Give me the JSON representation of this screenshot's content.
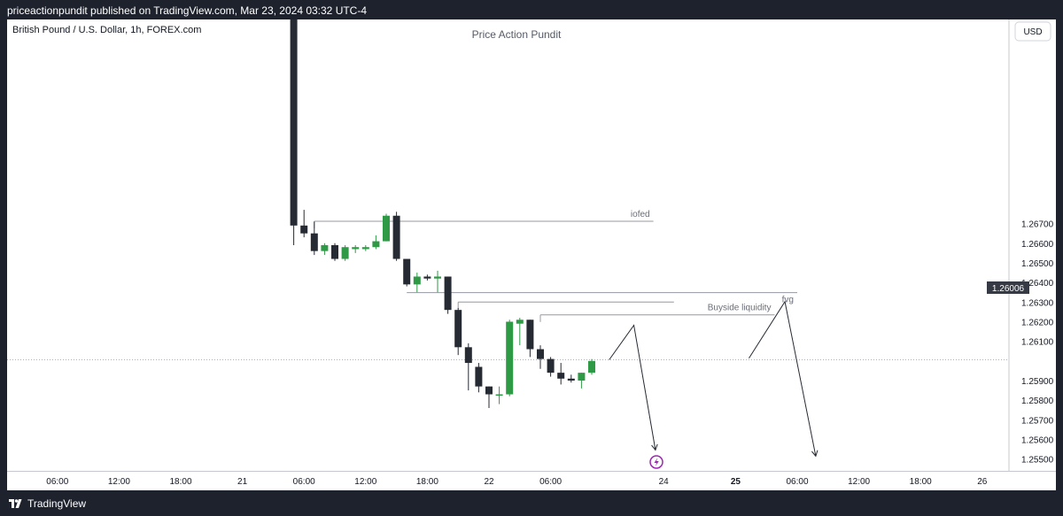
{
  "header": {
    "publish_line": "priceactionpundit published on TradingView.com, Mar 23, 2024 03:32 UTC-4"
  },
  "footer": {
    "brand": "TradingView"
  },
  "chart_data": {
    "type": "candlestick",
    "symbol_line": "British Pound / U.S. Dollar, 1h, FOREX.com",
    "watermark": "Price Action Pundit",
    "currency": "USD",
    "last_price": "1.26006",
    "ylim": [
      1.2544,
      1.2774
    ],
    "y_ticks": [
      1.267,
      1.266,
      1.265,
      1.264,
      1.263,
      1.262,
      1.261,
      1.259,
      1.258,
      1.257,
      1.256,
      1.255
    ],
    "y_tick_labels": [
      "1.26700",
      "1.26600",
      "1.26500",
      "1.26400",
      "1.26300",
      "1.26200",
      "1.26100",
      "1.25900",
      "1.25800",
      "1.25700",
      "1.25600",
      "1.25500"
    ],
    "x_ticks": [
      {
        "label": "06:00",
        "t": -12,
        "bold": false
      },
      {
        "label": "12:00",
        "t": -6,
        "bold": false
      },
      {
        "label": "18:00",
        "t": 0,
        "bold": false
      },
      {
        "label": "21",
        "t": 6,
        "bold": false
      },
      {
        "label": "06:00",
        "t": 12,
        "bold": false
      },
      {
        "label": "12:00",
        "t": 18,
        "bold": false
      },
      {
        "label": "18:00",
        "t": 24,
        "bold": false
      },
      {
        "label": "22",
        "t": 30,
        "bold": false
      },
      {
        "label": "06:00",
        "t": 36,
        "bold": false
      },
      {
        "label": "24",
        "t": 47,
        "bold": false
      },
      {
        "label": "25",
        "t": 54,
        "bold": true
      },
      {
        "label": "06:00",
        "t": 60,
        "bold": false
      },
      {
        "label": "12:00",
        "t": 66,
        "bold": false
      },
      {
        "label": "18:00",
        "t": 72,
        "bold": false
      },
      {
        "label": "26",
        "t": 78,
        "bold": false
      }
    ],
    "candles": [
      {
        "t": 11,
        "o": 1.2774,
        "h": 1.2774,
        "l": 1.2659,
        "c": 1.2669
      },
      {
        "t": 12,
        "o": 1.2669,
        "h": 1.2677,
        "l": 1.2663,
        "c": 1.2665
      },
      {
        "t": 13,
        "o": 1.2665,
        "h": 1.2671,
        "l": 1.2654,
        "c": 1.2656
      },
      {
        "t": 14,
        "o": 1.2656,
        "h": 1.266,
        "l": 1.2654,
        "c": 1.2659
      },
      {
        "t": 15,
        "o": 1.2659,
        "h": 1.266,
        "l": 1.2651,
        "c": 1.2652
      },
      {
        "t": 16,
        "o": 1.2652,
        "h": 1.2659,
        "l": 1.2651,
        "c": 1.2658
      },
      {
        "t": 17,
        "o": 1.2657,
        "h": 1.2659,
        "l": 1.2655,
        "c": 1.2658
      },
      {
        "t": 18,
        "o": 1.2657,
        "h": 1.2659,
        "l": 1.2656,
        "c": 1.2658
      },
      {
        "t": 19,
        "o": 1.2658,
        "h": 1.2664,
        "l": 1.2657,
        "c": 1.2661
      },
      {
        "t": 20,
        "o": 1.2661,
        "h": 1.2675,
        "l": 1.2661,
        "c": 1.2674
      },
      {
        "t": 21,
        "o": 1.2674,
        "h": 1.2676,
        "l": 1.2651,
        "c": 1.2652
      },
      {
        "t": 22,
        "o": 1.2652,
        "h": 1.2652,
        "l": 1.2638,
        "c": 1.2639
      },
      {
        "t": 23,
        "o": 1.2639,
        "h": 1.2645,
        "l": 1.2635,
        "c": 1.2643
      },
      {
        "t": 24,
        "o": 1.2643,
        "h": 1.2644,
        "l": 1.2641,
        "c": 1.2642
      },
      {
        "t": 25,
        "o": 1.2642,
        "h": 1.2646,
        "l": 1.2635,
        "c": 1.2643
      },
      {
        "t": 26,
        "o": 1.2643,
        "h": 1.2643,
        "l": 1.2624,
        "c": 1.2626
      },
      {
        "t": 27,
        "o": 1.2626,
        "h": 1.2627,
        "l": 1.2603,
        "c": 1.2607
      },
      {
        "t": 28,
        "o": 1.2607,
        "h": 1.2609,
        "l": 1.2585,
        "c": 1.2599
      },
      {
        "t": 29,
        "o": 1.2597,
        "h": 1.2599,
        "l": 1.2584,
        "c": 1.2587
      },
      {
        "t": 30,
        "o": 1.2587,
        "h": 1.2587,
        "l": 1.2576,
        "c": 1.2583
      },
      {
        "t": 31,
        "o": 1.2583,
        "h": 1.2587,
        "l": 1.2578,
        "c": 1.2583
      },
      {
        "t": 32,
        "o": 1.2583,
        "h": 1.2621,
        "l": 1.2582,
        "c": 1.262
      },
      {
        "t": 33,
        "o": 1.2619,
        "h": 1.2622,
        "l": 1.2608,
        "c": 1.2621
      },
      {
        "t": 34,
        "o": 1.2621,
        "h": 1.2621,
        "l": 1.2602,
        "c": 1.2606
      },
      {
        "t": 35,
        "o": 1.2606,
        "h": 1.2608,
        "l": 1.2596,
        "c": 1.2601
      },
      {
        "t": 36,
        "o": 1.2601,
        "h": 1.2602,
        "l": 1.2592,
        "c": 1.2594
      },
      {
        "t": 37,
        "o": 1.2594,
        "h": 1.2599,
        "l": 1.2588,
        "c": 1.2591
      },
      {
        "t": 38,
        "o": 1.2591,
        "h": 1.2593,
        "l": 1.2589,
        "c": 1.259
      },
      {
        "t": 39,
        "o": 1.259,
        "h": 1.2594,
        "l": 1.2586,
        "c": 1.2594
      },
      {
        "t": 40,
        "o": 1.2594,
        "h": 1.2601,
        "l": 1.2593,
        "c": 1.26
      }
    ],
    "levels": [
      {
        "label": "iofed",
        "price": 1.26712,
        "t0": 13,
        "t1": 46
      },
      {
        "label": "fvg",
        "price": 1.26348,
        "t0": 22,
        "t1": 60
      },
      {
        "label": "",
        "price": 1.263,
        "t0": 27,
        "t1": 48
      },
      {
        "label": "Buyside liquidity",
        "price": 1.26235,
        "t0": 35,
        "t1": 57.8
      }
    ],
    "projections": [
      [
        [
          41.7,
          1.26006
        ],
        [
          44.1,
          1.26182
        ],
        [
          46.2,
          1.25546
        ]
      ],
      [
        [
          55.3,
          1.26014
        ],
        [
          58.8,
          1.26302
        ],
        [
          61.8,
          1.25515
        ]
      ]
    ]
  }
}
